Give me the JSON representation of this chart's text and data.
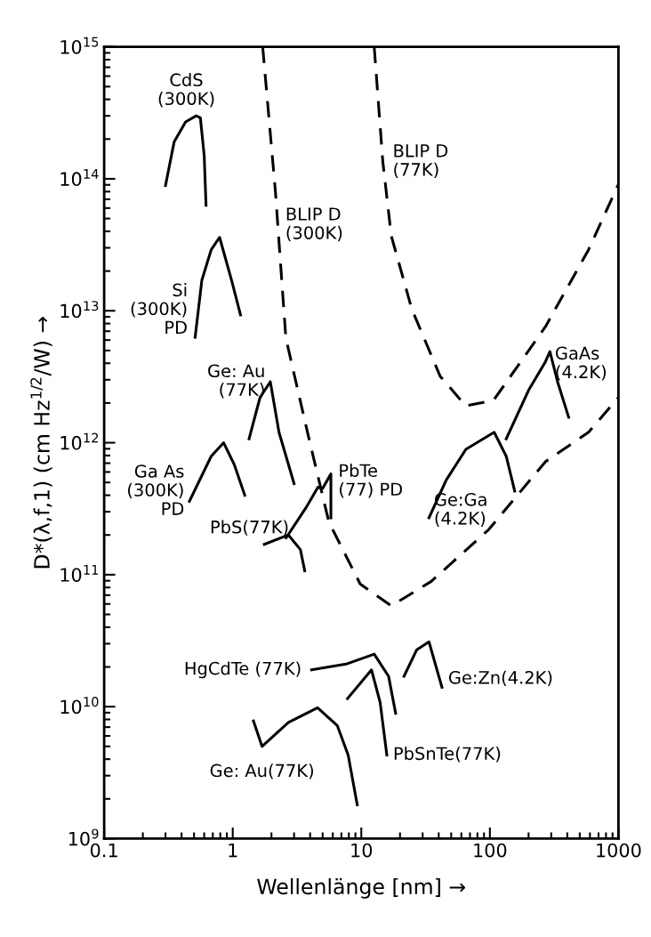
{
  "chart_data": {
    "type": "line",
    "log": "xy",
    "grid": false,
    "marker": "none",
    "xlabel": "Wellenlänge [nm] →",
    "ylabel": "D*(λ,f,1) (cm Hz$^{1/2}$/W) →",
    "xlim": [
      0.1,
      1000
    ],
    "ylim": [
      1000000000.0,
      1000000000000000.0
    ],
    "xticks": [
      {
        "value": 0.1,
        "label": "0.1"
      },
      1,
      10,
      100,
      1000
    ],
    "yticks": [
      {
        "value": 1000000000.0,
        "label": "10$^{9}$"
      },
      {
        "value": 10000000000.0,
        "label": "10$^{10}$"
      },
      {
        "value": 100000000000.0,
        "label": "10$^{11}$"
      },
      {
        "value": 1000000000000.0,
        "label": "10$^{12}$"
      },
      {
        "value": 10000000000000.0,
        "label": "10$^{13}$"
      },
      {
        "value": 100000000000000.0,
        "label": "10$^{14}$"
      },
      {
        "value": 1000000000000000.0,
        "label": "10$^{15}$"
      }
    ],
    "series": [
      {
        "color": "#000000",
        "line_style": "solid",
        "x": [
          0.3,
          0.35,
          0.43,
          0.52,
          0.56,
          0.6,
          0.62
        ],
        "values": [
          89000000000000.0,
          190000000000000.0,
          270000000000000.0,
          300000000000000.0,
          290000000000000.0,
          150000000000000.0,
          63000000000000.0
        ]
      },
      {
        "color": "#000000",
        "line_style": "solid",
        "x": [
          0.51,
          0.575,
          0.68,
          0.79,
          0.98,
          1.15
        ],
        "values": [
          6300000000000.0,
          17000000000000.0,
          29000000000000.0,
          36000000000000.0,
          17000000000000.0,
          9300000000000.0
        ]
      },
      {
        "color": "#000000",
        "line_style": "solid",
        "x": [
          1.34,
          1.63,
          1.96,
          2.29,
          3.0
        ],
        "values": [
          1070000000000.0,
          2200000000000.0,
          2900000000000.0,
          1200000000000.0,
          490000000000.0
        ]
      },
      {
        "color": "#000000",
        "line_style": "solid",
        "x": [
          0.46,
          0.68,
          0.85,
          1.03,
          1.24
        ],
        "values": [
          360000000000.0,
          790000000000.0,
          1000000000000.0,
          680000000000.0,
          400000000000.0
        ]
      },
      {
        "color": "#000000",
        "line_style": "solid",
        "x": [
          1.76,
          2.71,
          3.36,
          3.63
        ],
        "values": [
          170000000000.0,
          200000000000.0,
          155000000000.0,
          107000000000.0
        ]
      },
      {
        "color": "#000000",
        "line_style": "solid",
        "x": [
          2.6,
          3.7,
          4.6,
          5.0,
          5.8,
          5.8
        ],
        "values": [
          190000000000.0,
          320000000000.0,
          460000000000.0,
          450000000000.0,
          580000000000.0,
          270000000000.0
        ]
      },
      {
        "color": "#000000",
        "line_style": "solid",
        "x": [
          134,
          200,
          270,
          293,
          336,
          410
        ],
        "values": [
          1070000000000.0,
          2500000000000.0,
          4100000000000.0,
          4900000000000.0,
          2900000000000.0,
          1560000000000.0
        ]
      },
      {
        "color": "#000000",
        "line_style": "solid",
        "x": [
          33.6,
          45.7,
          65,
          108,
          134,
          156
        ],
        "values": [
          270000000000.0,
          520000000000.0,
          890000000000.0,
          1200000000000.0,
          790000000000.0,
          430000000000.0
        ]
      },
      {
        "color": "#000000",
        "line_style": "solid",
        "x": [
          4.1,
          7.6,
          12.6,
          16.3,
          18.5
        ],
        "values": [
          19000000000.0,
          21000000000.0,
          25000000000.0,
          17000000000.0,
          8900000000.0
        ]
      },
      {
        "color": "#000000",
        "line_style": "solid",
        "x": [
          7.8,
          12,
          14,
          15.8
        ],
        "values": [
          11500000000.0,
          19000000000.0,
          10800000000.0,
          4300000000.0
        ]
      },
      {
        "color": "#000000",
        "line_style": "solid",
        "x": [
          21.5,
          27,
          33.6,
          42.4
        ],
        "values": [
          17000000000.0,
          27000000000.0,
          31000000000.0,
          14000000000.0
        ]
      },
      {
        "color": "#000000",
        "line_style": "solid",
        "x": [
          1.45,
          1.69,
          2.71,
          4.57,
          6.5,
          7.9,
          9.3
        ],
        "values": [
          7800000000.0,
          5000000000.0,
          7600000000.0,
          9800000000.0,
          7200000000.0,
          4300000000.0,
          1800000000.0
        ]
      },
      {
        "color": "#000000",
        "line_style": "dashed",
        "x": [
          1.71,
          2.15,
          2.59,
          3.92,
          5.6,
          9.8,
          17.1,
          35,
          98,
          271,
          585,
          1000
        ],
        "values": [
          1000000000000000.0,
          79000000000000.0,
          6200000000000.0,
          1070000000000.0,
          250000000000.0,
          85000000000.0,
          58000000000.0,
          89000000000.0,
          220000000000.0,
          720000000000.0,
          1200000000000.0,
          2200000000000.0
        ]
      },
      {
        "color": "#000000",
        "line_style": "dashed",
        "x": [
          12.6,
          14.7,
          17.1,
          24.7,
          41,
          65,
          107,
          271,
          585,
          1000
        ],
        "values": [
          1000000000000000.0,
          135000000000000.0,
          37000000000000.0,
          10300000000000.0,
          3200000000000.0,
          1900000000000.0,
          2100000000000.0,
          7600000000000.0,
          29000000000000.0,
          91000000000000.0
        ]
      }
    ],
    "annotations": [
      {
        "text": "CdS\n(300K)",
        "x": 0.52,
        "y": 300000000000000.0
      },
      {
        "text": "Si\n(300K)\nPD",
        "x": 0.51,
        "y": 6300000000000.0
      },
      {
        "text": "Ge: Au\n(77K)",
        "x": 1.96,
        "y": 2900000000000.0
      },
      {
        "text": "Ga As\n(300K)\nPD",
        "x": 0.46,
        "y": 360000000000.0
      },
      {
        "text": "PbS(77K)",
        "x": 1.76,
        "y": 170000000000.0
      },
      {
        "text": "PbTe\n(77) PD",
        "x": 5.8,
        "y": 580000000000.0
      },
      {
        "text": "BLIP D\n(300K)",
        "x": 2.15,
        "y": 79000000000000.0
      },
      {
        "text": "BLIP D\n(77K)",
        "x": 14.7,
        "y": 135000000000000.0
      },
      {
        "text": "GaAs\n(4.2K)",
        "x": 293,
        "y": 4900000000000.0
      },
      {
        "text": "Ge:Ga\n(4.2K)",
        "x": 33.6,
        "y": 270000000000.0
      },
      {
        "text": "HgCdTe (77K)",
        "x": 4.1,
        "y": 19000000000.0
      },
      {
        "text": "Ge:Zn(4.2K)",
        "x": 42.4,
        "y": 14000000000.0
      },
      {
        "text": "PbSnTe(77K)",
        "x": 15.8,
        "y": 4300000000.0
      },
      {
        "text": "Ge: Au(77K)",
        "x": 1.69,
        "y": 5000000000.0
      }
    ]
  }
}
